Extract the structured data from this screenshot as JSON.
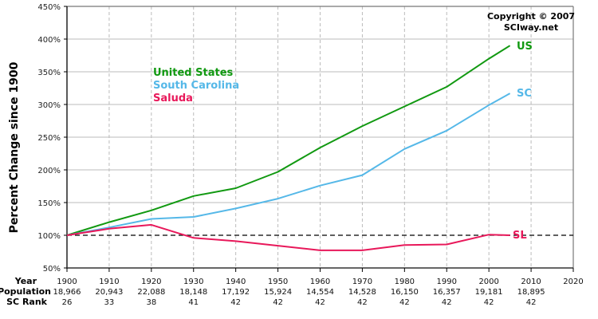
{
  "chart_data": {
    "type": "line",
    "title": "",
    "xlabel": "Year",
    "ylabel": "Percent Change since 1900",
    "ylim": [
      50,
      450
    ],
    "yticks": [
      "50%",
      "100%",
      "150%",
      "200%",
      "250%",
      "300%",
      "350%",
      "400%",
      "450%"
    ],
    "x": [
      1900,
      1910,
      1920,
      1930,
      1940,
      1950,
      1960,
      1970,
      1980,
      1990,
      2000,
      2005
    ],
    "xticks": [
      "1900",
      "1910",
      "1920",
      "1930",
      "1940",
      "1950",
      "1960",
      "1970",
      "1980",
      "1990",
      "2000",
      "2010",
      "2020"
    ],
    "grid": true,
    "reference_line": {
      "value": 100,
      "style": "dashed",
      "color": "#000000"
    },
    "legend_position": "upper-left",
    "series": [
      {
        "name": "United States",
        "short": "US",
        "color": "#119911",
        "values": [
          100,
          120,
          138,
          160,
          172,
          197,
          234,
          267,
          297,
          327,
          370,
          390
        ]
      },
      {
        "name": "South Carolina",
        "short": "SC",
        "color": "#55b8e8",
        "values": [
          100,
          112,
          125,
          128,
          141,
          156,
          176,
          192,
          232,
          260,
          299,
          317
        ]
      },
      {
        "name": "Saluda",
        "short": "SL",
        "color": "#e8185a",
        "values": [
          100,
          110,
          116,
          96,
          91,
          84,
          77,
          77,
          85,
          86,
          101,
          100
        ]
      }
    ],
    "table": {
      "row_headers": [
        "Year",
        "Population",
        "SC Rank"
      ],
      "years": [
        "1900",
        "1910",
        "1920",
        "1930",
        "1940",
        "1950",
        "1960",
        "1970",
        "1980",
        "1990",
        "2000",
        "2010",
        "2020"
      ],
      "population": [
        "18,966",
        "20,943",
        "22,088",
        "18,148",
        "17,192",
        "15,924",
        "14,554",
        "14,528",
        "16,150",
        "16,357",
        "19,181",
        "18,895",
        ""
      ],
      "sc_rank": [
        "26",
        "33",
        "38",
        "41",
        "42",
        "42",
        "42",
        "42",
        "42",
        "42",
        "42",
        "42",
        ""
      ]
    },
    "annotations": [
      "Copyright © 2007",
      "SCIway.net"
    ]
  },
  "labels": {
    "ylabel": "Percent Change since 1900",
    "copyright_line1": "Copyright © 2007",
    "copyright_line2": "SCIway.net",
    "legend_us": "United States",
    "legend_sc": "South Carolina",
    "legend_sl": "Saluda",
    "end_us": "US",
    "end_sc": "SC",
    "end_sl": "SL",
    "row_year": "Year",
    "row_population": "Population",
    "row_rank": "SC Rank"
  }
}
